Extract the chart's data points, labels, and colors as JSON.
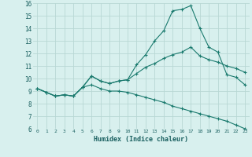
{
  "xlabel": "Humidex (Indice chaleur)",
  "bg_color": "#d8f0ee",
  "line_color": "#1a7a6e",
  "grid_color": "#b8d8d4",
  "xlim": [
    -0.5,
    23.5
  ],
  "ylim": [
    6,
    16
  ],
  "xticks": [
    0,
    1,
    2,
    3,
    4,
    5,
    6,
    7,
    8,
    9,
    10,
    11,
    12,
    13,
    14,
    15,
    16,
    17,
    18,
    19,
    20,
    21,
    22,
    23
  ],
  "yticks": [
    6,
    7,
    8,
    9,
    10,
    11,
    12,
    13,
    14,
    15,
    16
  ],
  "line1_x": [
    0,
    1,
    2,
    3,
    4,
    5,
    6,
    7,
    8,
    9,
    10,
    11,
    12,
    13,
    14,
    15,
    16,
    17,
    18,
    19,
    20,
    21,
    22,
    23
  ],
  "line1_y": [
    9.2,
    8.9,
    8.6,
    8.7,
    8.6,
    9.3,
    10.2,
    9.8,
    9.6,
    9.8,
    9.9,
    11.1,
    11.9,
    13.0,
    13.8,
    15.4,
    15.5,
    15.8,
    14.0,
    12.5,
    12.1,
    10.3,
    10.1,
    9.5
  ],
  "line2_x": [
    0,
    1,
    2,
    3,
    4,
    5,
    6,
    7,
    8,
    9,
    10,
    11,
    12,
    13,
    14,
    15,
    16,
    17,
    18,
    19,
    20,
    21,
    22,
    23
  ],
  "line2_y": [
    9.2,
    8.9,
    8.6,
    8.7,
    8.6,
    9.3,
    10.2,
    9.8,
    9.6,
    9.8,
    9.9,
    10.4,
    10.9,
    11.2,
    11.6,
    11.9,
    12.1,
    12.5,
    11.8,
    11.5,
    11.3,
    11.0,
    10.8,
    10.5
  ],
  "line3_x": [
    0,
    1,
    2,
    3,
    4,
    5,
    6,
    7,
    8,
    9,
    10,
    11,
    12,
    13,
    14,
    15,
    16,
    17,
    18,
    19,
    20,
    21,
    22,
    23
  ],
  "line3_y": [
    9.2,
    8.9,
    8.6,
    8.7,
    8.6,
    9.3,
    9.5,
    9.2,
    9.0,
    9.0,
    8.9,
    8.7,
    8.5,
    8.3,
    8.1,
    7.8,
    7.6,
    7.4,
    7.2,
    7.0,
    6.8,
    6.6,
    6.3,
    6.0
  ]
}
